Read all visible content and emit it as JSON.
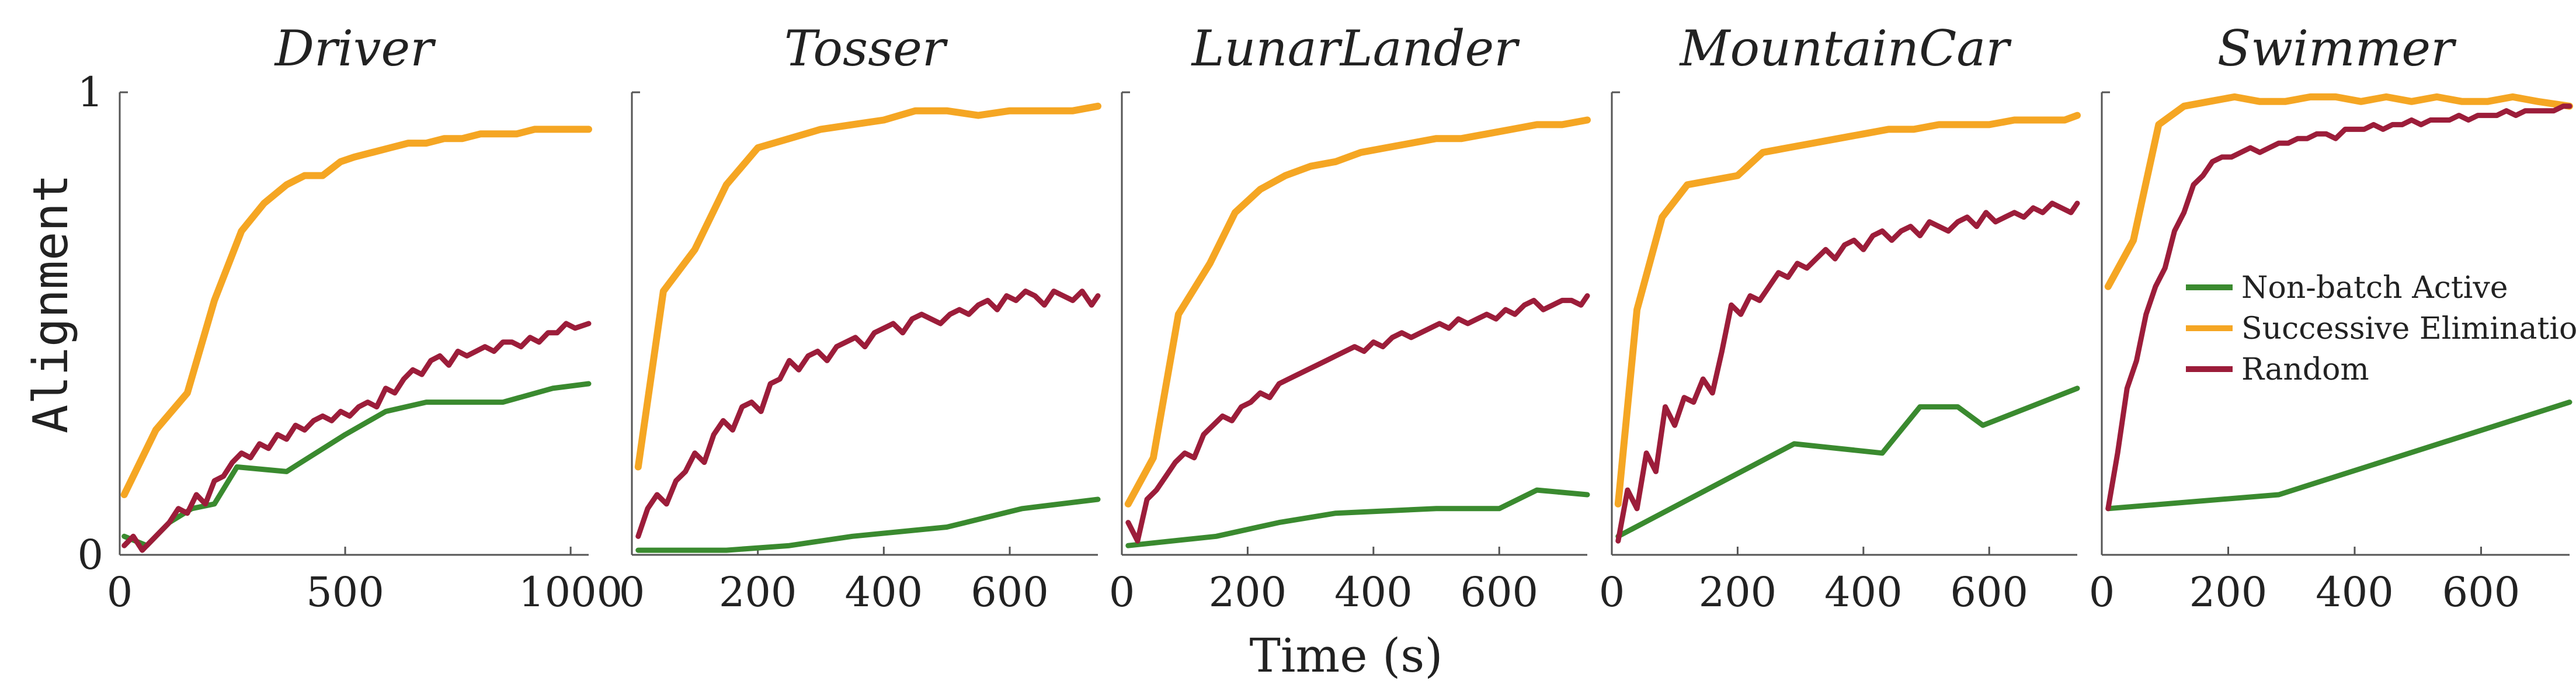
{
  "chart_data": {
    "type": "line",
    "shared_xlabel": "Time (s)",
    "shared_ylabel": "Alignment",
    "ylim": [
      0,
      1
    ],
    "yticks": [
      0,
      1
    ],
    "legend": {
      "placement": "inside-last-panel-center-right",
      "entries": [
        "Non-batch Active",
        "Successive Elimination",
        "Random"
      ]
    },
    "colors": {
      "Non-batch Active": "#3a8a2f",
      "Successive Elimination": "#f5a623",
      "Random": "#9c1d3a"
    },
    "panels": [
      {
        "title": "Driver",
        "xlim": [
          0,
          1040
        ],
        "xticks": [
          0,
          500,
          1000
        ],
        "series": [
          {
            "name": "Non-batch Active",
            "x": [
              10,
              60,
              110,
              160,
              210,
              260,
              370,
              500,
              590,
              680,
              850,
              960,
              1040
            ],
            "y": [
              0.04,
              0.02,
              0.07,
              0.1,
              0.11,
              0.19,
              0.18,
              0.26,
              0.31,
              0.33,
              0.33,
              0.36,
              0.37
            ]
          },
          {
            "name": "Successive Elimination",
            "x": [
              10,
              80,
              150,
              210,
              270,
              320,
              370,
              410,
              450,
              490,
              520,
              560,
              600,
              640,
              680,
              720,
              760,
              800,
              840,
              880,
              920,
              960,
              1000,
              1040
            ],
            "y": [
              0.13,
              0.27,
              0.35,
              0.55,
              0.7,
              0.76,
              0.8,
              0.82,
              0.82,
              0.85,
              0.86,
              0.87,
              0.88,
              0.89,
              0.89,
              0.9,
              0.9,
              0.91,
              0.91,
              0.91,
              0.92,
              0.92,
              0.92,
              0.92
            ]
          },
          {
            "name": "Random",
            "x": [
              10,
              30,
              50,
              70,
              90,
              110,
              130,
              150,
              170,
              190,
              210,
              230,
              250,
              270,
              290,
              310,
              330,
              350,
              370,
              390,
              410,
              430,
              450,
              470,
              490,
              510,
              530,
              550,
              570,
              590,
              610,
              630,
              650,
              670,
              690,
              710,
              730,
              750,
              770,
              790,
              810,
              830,
              850,
              870,
              890,
              910,
              930,
              950,
              970,
              990,
              1010,
              1040
            ],
            "y": [
              0.02,
              0.04,
              0.01,
              0.03,
              0.05,
              0.07,
              0.1,
              0.09,
              0.13,
              0.11,
              0.16,
              0.17,
              0.2,
              0.22,
              0.21,
              0.24,
              0.23,
              0.26,
              0.25,
              0.28,
              0.27,
              0.29,
              0.3,
              0.29,
              0.31,
              0.3,
              0.32,
              0.33,
              0.32,
              0.36,
              0.35,
              0.38,
              0.4,
              0.39,
              0.42,
              0.43,
              0.41,
              0.44,
              0.43,
              0.44,
              0.45,
              0.44,
              0.46,
              0.46,
              0.45,
              0.47,
              0.46,
              0.48,
              0.48,
              0.5,
              0.49,
              0.5
            ]
          }
        ]
      },
      {
        "title": "Tosser",
        "xlim": [
          0,
          740
        ],
        "xticks": [
          0,
          200,
          400,
          600
        ],
        "series": [
          {
            "name": "Non-batch Active",
            "x": [
              10,
              80,
              150,
              250,
              350,
              500,
              620,
              740
            ],
            "y": [
              0.01,
              0.01,
              0.01,
              0.02,
              0.04,
              0.06,
              0.1,
              0.12
            ]
          },
          {
            "name": "Successive Elimination",
            "x": [
              10,
              50,
              100,
              150,
              200,
              250,
              300,
              350,
              400,
              450,
              500,
              550,
              600,
              650,
              700,
              740
            ],
            "y": [
              0.19,
              0.57,
              0.66,
              0.8,
              0.88,
              0.9,
              0.92,
              0.93,
              0.94,
              0.96,
              0.96,
              0.95,
              0.96,
              0.96,
              0.96,
              0.97
            ]
          },
          {
            "name": "Random",
            "x": [
              10,
              25,
              40,
              55,
              70,
              85,
              100,
              115,
              130,
              145,
              160,
              175,
              190,
              205,
              220,
              235,
              250,
              265,
              280,
              295,
              310,
              325,
              340,
              355,
              370,
              385,
              400,
              415,
              430,
              445,
              460,
              475,
              490,
              505,
              520,
              535,
              550,
              565,
              580,
              595,
              610,
              625,
              640,
              655,
              670,
              685,
              700,
              715,
              730,
              740
            ],
            "y": [
              0.04,
              0.1,
              0.13,
              0.11,
              0.16,
              0.18,
              0.22,
              0.2,
              0.26,
              0.29,
              0.27,
              0.32,
              0.33,
              0.31,
              0.37,
              0.38,
              0.42,
              0.4,
              0.43,
              0.44,
              0.42,
              0.45,
              0.46,
              0.47,
              0.45,
              0.48,
              0.49,
              0.5,
              0.48,
              0.51,
              0.52,
              0.51,
              0.5,
              0.52,
              0.53,
              0.52,
              0.54,
              0.55,
              0.53,
              0.56,
              0.55,
              0.57,
              0.56,
              0.54,
              0.57,
              0.56,
              0.55,
              0.57,
              0.54,
              0.56
            ]
          }
        ]
      },
      {
        "title": "LunarLander",
        "xlim": [
          0,
          740
        ],
        "xticks": [
          0,
          200,
          400,
          600
        ],
        "series": [
          {
            "name": "Non-batch Active",
            "x": [
              10,
              150,
              250,
              340,
              500,
              600,
              660,
              740
            ],
            "y": [
              0.02,
              0.04,
              0.07,
              0.09,
              0.1,
              0.1,
              0.14,
              0.13
            ]
          },
          {
            "name": "Successive Elimination",
            "x": [
              10,
              50,
              90,
              140,
              180,
              220,
              260,
              300,
              340,
              380,
              420,
              460,
              500,
              540,
              580,
              620,
              660,
              700,
              740
            ],
            "y": [
              0.11,
              0.21,
              0.52,
              0.63,
              0.74,
              0.79,
              0.82,
              0.84,
              0.85,
              0.87,
              0.88,
              0.89,
              0.9,
              0.9,
              0.91,
              0.92,
              0.93,
              0.93,
              0.94
            ]
          },
          {
            "name": "Random",
            "x": [
              10,
              25,
              40,
              55,
              70,
              85,
              100,
              115,
              130,
              145,
              160,
              175,
              190,
              205,
              220,
              235,
              250,
              265,
              280,
              295,
              310,
              325,
              340,
              355,
              370,
              385,
              400,
              415,
              430,
              445,
              460,
              475,
              490,
              505,
              520,
              535,
              550,
              565,
              580,
              595,
              610,
              625,
              640,
              655,
              670,
              685,
              700,
              715,
              730,
              740
            ],
            "y": [
              0.07,
              0.03,
              0.12,
              0.14,
              0.17,
              0.2,
              0.22,
              0.21,
              0.26,
              0.28,
              0.3,
              0.29,
              0.32,
              0.33,
              0.35,
              0.34,
              0.37,
              0.38,
              0.39,
              0.4,
              0.41,
              0.42,
              0.43,
              0.44,
              0.45,
              0.44,
              0.46,
              0.45,
              0.47,
              0.48,
              0.47,
              0.48,
              0.49,
              0.5,
              0.49,
              0.51,
              0.5,
              0.51,
              0.52,
              0.51,
              0.53,
              0.52,
              0.54,
              0.55,
              0.53,
              0.54,
              0.55,
              0.55,
              0.54,
              0.56
            ]
          }
        ]
      },
      {
        "title": "MountainCar",
        "xlim": [
          0,
          740
        ],
        "xticks": [
          0,
          200,
          400,
          600
        ],
        "series": [
          {
            "name": "Non-batch Active",
            "x": [
              10,
              290,
              430,
              490,
              550,
              590,
              740
            ],
            "y": [
              0.04,
              0.24,
              0.22,
              0.32,
              0.32,
              0.28,
              0.36
            ]
          },
          {
            "name": "Successive Elimination",
            "x": [
              10,
              40,
              80,
              120,
              160,
              200,
              240,
              280,
              320,
              360,
              400,
              440,
              480,
              520,
              560,
              600,
              640,
              680,
              720,
              740
            ],
            "y": [
              0.11,
              0.53,
              0.73,
              0.8,
              0.81,
              0.82,
              0.87,
              0.88,
              0.89,
              0.9,
              0.91,
              0.92,
              0.92,
              0.93,
              0.93,
              0.93,
              0.94,
              0.94,
              0.94,
              0.95
            ]
          },
          {
            "name": "Random",
            "x": [
              10,
              25,
              40,
              55,
              70,
              85,
              100,
              115,
              130,
              145,
              160,
              175,
              190,
              205,
              220,
              235,
              250,
              265,
              280,
              295,
              310,
              325,
              340,
              355,
              370,
              385,
              400,
              415,
              430,
              445,
              460,
              475,
              490,
              505,
              520,
              535,
              550,
              565,
              580,
              595,
              610,
              625,
              640,
              655,
              670,
              685,
              700,
              715,
              730,
              740
            ],
            "y": [
              0.03,
              0.14,
              0.1,
              0.22,
              0.18,
              0.32,
              0.28,
              0.34,
              0.33,
              0.38,
              0.35,
              0.44,
              0.54,
              0.52,
              0.56,
              0.55,
              0.58,
              0.61,
              0.6,
              0.63,
              0.62,
              0.64,
              0.66,
              0.64,
              0.67,
              0.68,
              0.66,
              0.69,
              0.7,
              0.68,
              0.7,
              0.71,
              0.69,
              0.72,
              0.71,
              0.7,
              0.72,
              0.73,
              0.71,
              0.74,
              0.72,
              0.73,
              0.74,
              0.73,
              0.75,
              0.74,
              0.76,
              0.75,
              0.74,
              0.76
            ]
          }
        ]
      },
      {
        "title": "Swimmer",
        "xlim": [
          0,
          740
        ],
        "xticks": [
          0,
          200,
          400,
          600
        ],
        "series": [
          {
            "name": "Non-batch Active",
            "x": [
              10,
              280,
              740
            ],
            "y": [
              0.1,
              0.13,
              0.33
            ]
          },
          {
            "name": "Successive Elimination",
            "x": [
              10,
              50,
              90,
              130,
              170,
              210,
              250,
              290,
              330,
              370,
              410,
              450,
              490,
              530,
              570,
              610,
              650,
              690,
              740
            ],
            "y": [
              0.58,
              0.68,
              0.93,
              0.97,
              0.98,
              0.99,
              0.98,
              0.98,
              0.99,
              0.99,
              0.98,
              0.99,
              0.98,
              0.99,
              0.98,
              0.98,
              0.99,
              0.98,
              0.97
            ]
          },
          {
            "name": "Random",
            "x": [
              10,
              25,
              40,
              55,
              70,
              85,
              100,
              115,
              130,
              145,
              160,
              175,
              190,
              205,
              220,
              235,
              250,
              265,
              280,
              295,
              310,
              325,
              340,
              355,
              370,
              385,
              400,
              415,
              430,
              445,
              460,
              475,
              490,
              505,
              520,
              535,
              550,
              565,
              580,
              595,
              610,
              625,
              640,
              655,
              670,
              685,
              700,
              715,
              730,
              740
            ],
            "y": [
              0.1,
              0.22,
              0.36,
              0.42,
              0.52,
              0.58,
              0.62,
              0.7,
              0.74,
              0.8,
              0.82,
              0.85,
              0.86,
              0.86,
              0.87,
              0.88,
              0.87,
              0.88,
              0.89,
              0.89,
              0.9,
              0.9,
              0.91,
              0.91,
              0.9,
              0.92,
              0.92,
              0.92,
              0.93,
              0.92,
              0.93,
              0.93,
              0.94,
              0.93,
              0.94,
              0.94,
              0.94,
              0.95,
              0.94,
              0.95,
              0.95,
              0.95,
              0.96,
              0.95,
              0.96,
              0.96,
              0.96,
              0.96,
              0.97,
              0.97
            ]
          }
        ]
      }
    ]
  }
}
